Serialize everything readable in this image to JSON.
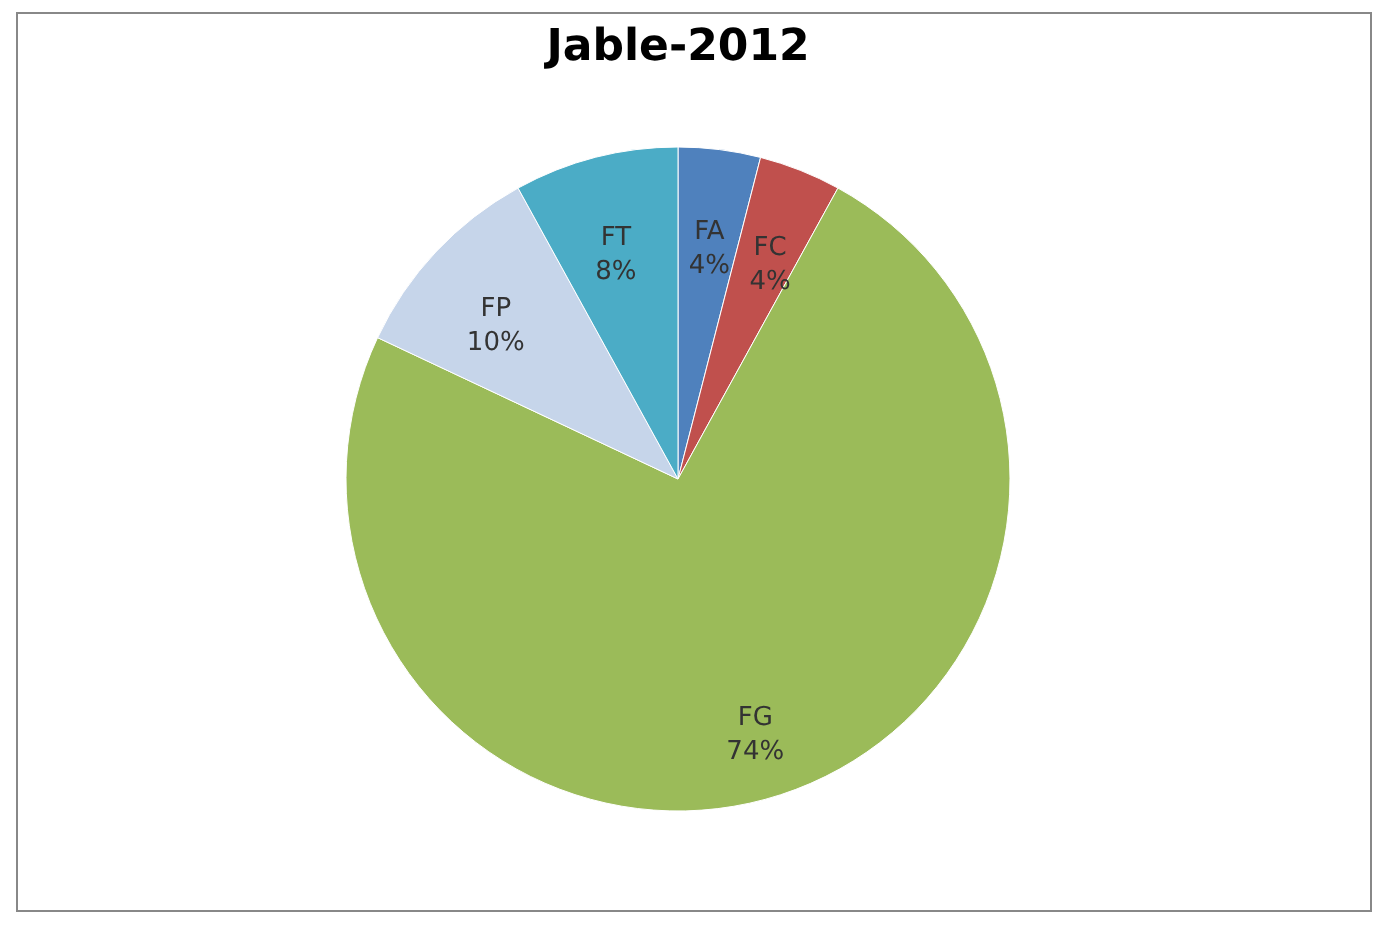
{
  "chart_data": {
    "type": "pie",
    "title": "Jable-2012",
    "categories": [
      "FA",
      "FC",
      "FG",
      "FP",
      "FT"
    ],
    "values": [
      4,
      4,
      74,
      10,
      8
    ],
    "value_labels": [
      "4%",
      "4%",
      "74%",
      "10%",
      "8%"
    ],
    "colors": [
      "#4f81bd",
      "#c0504d",
      "#9bbb59",
      "#c6d5ea",
      "#4bacc6"
    ],
    "legend": false
  }
}
